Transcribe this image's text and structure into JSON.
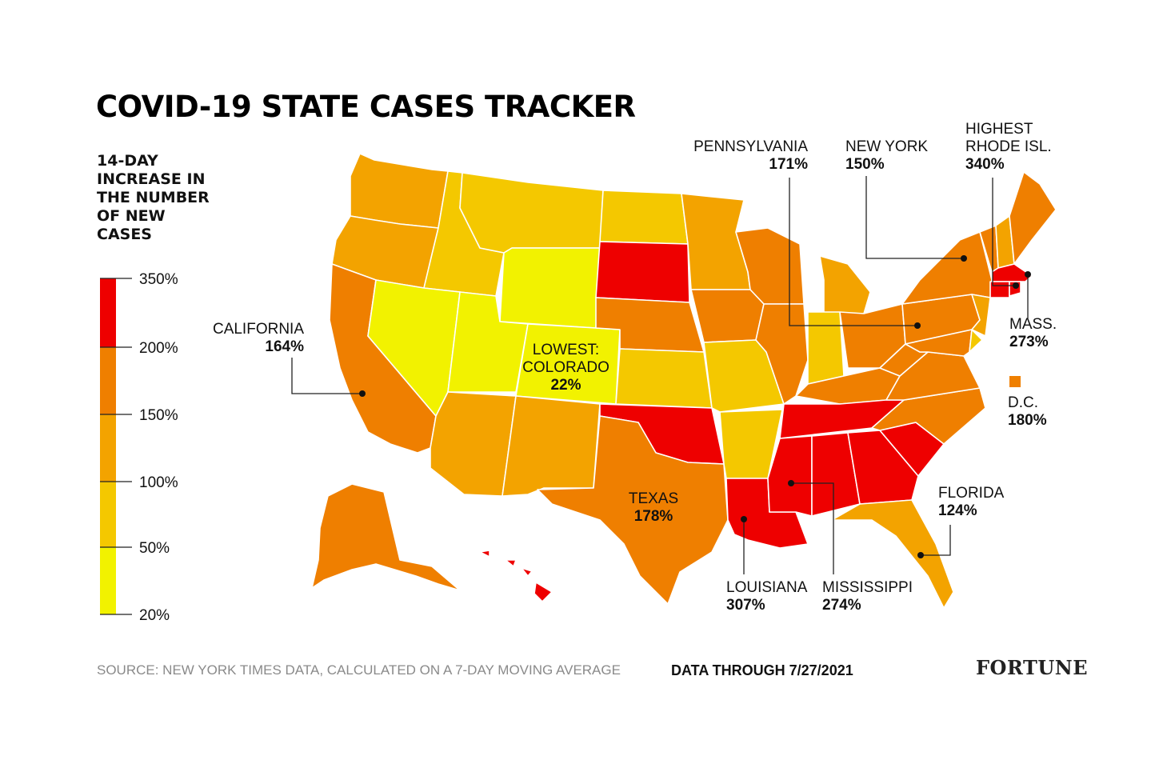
{
  "title": "COVID-19 STATE CASES TRACKER",
  "legend": {
    "title_lines": [
      "14-DAY",
      "INCREASE IN",
      "THE NUMBER",
      "OF NEW",
      "CASES"
    ],
    "ticks": [
      "350%",
      "200%",
      "150%",
      "100%",
      "50%",
      "20%"
    ],
    "bins": [
      {
        "from": 200,
        "to": 350,
        "color": "#ee0000"
      },
      {
        "from": 150,
        "to": 200,
        "color": "#ef7f00"
      },
      {
        "from": 100,
        "to": 150,
        "color": "#f3a300"
      },
      {
        "from": 50,
        "to": 100,
        "color": "#f4c800"
      },
      {
        "from": 20,
        "to": 50,
        "color": "#f2f200"
      }
    ]
  },
  "callouts": {
    "pennsylvania": {
      "name": "PENNSYLVANIA",
      "value": "171%"
    },
    "new_york": {
      "name": "NEW YORK",
      "value": "150%"
    },
    "rhode_island": {
      "label": "HIGHEST",
      "name": "RHODE ISL.",
      "value": "340%"
    },
    "massachusetts": {
      "name": "MASS.",
      "value": "273%"
    },
    "dc": {
      "name": "D.C.",
      "value": "180%"
    },
    "california": {
      "name": "CALIFORNIA",
      "value": "164%"
    },
    "colorado": {
      "label": "LOWEST:",
      "name": "COLORADO",
      "value": "22%"
    },
    "texas": {
      "name": "TEXAS",
      "value": "178%"
    },
    "florida": {
      "name": "FLORIDA",
      "value": "124%"
    },
    "louisiana": {
      "name": "LOUISIANA",
      "value": "307%"
    },
    "mississippi": {
      "name": "MISSISSIPPI",
      "value": "274%"
    }
  },
  "colors": {
    "bin_200_350": "#ee0000",
    "bin_150_200": "#ef7f00",
    "bin_100_150": "#f3a300",
    "bin_50_100": "#f4c800",
    "bin_20_50": "#f2f200"
  },
  "footer": {
    "source": "SOURCE: NEW YORK TIMES DATA, CALCULATED ON A 7-DAY MOVING AVERAGE",
    "date": "DATA THROUGH 7/27/2021",
    "brand": "FORTUNE"
  }
}
